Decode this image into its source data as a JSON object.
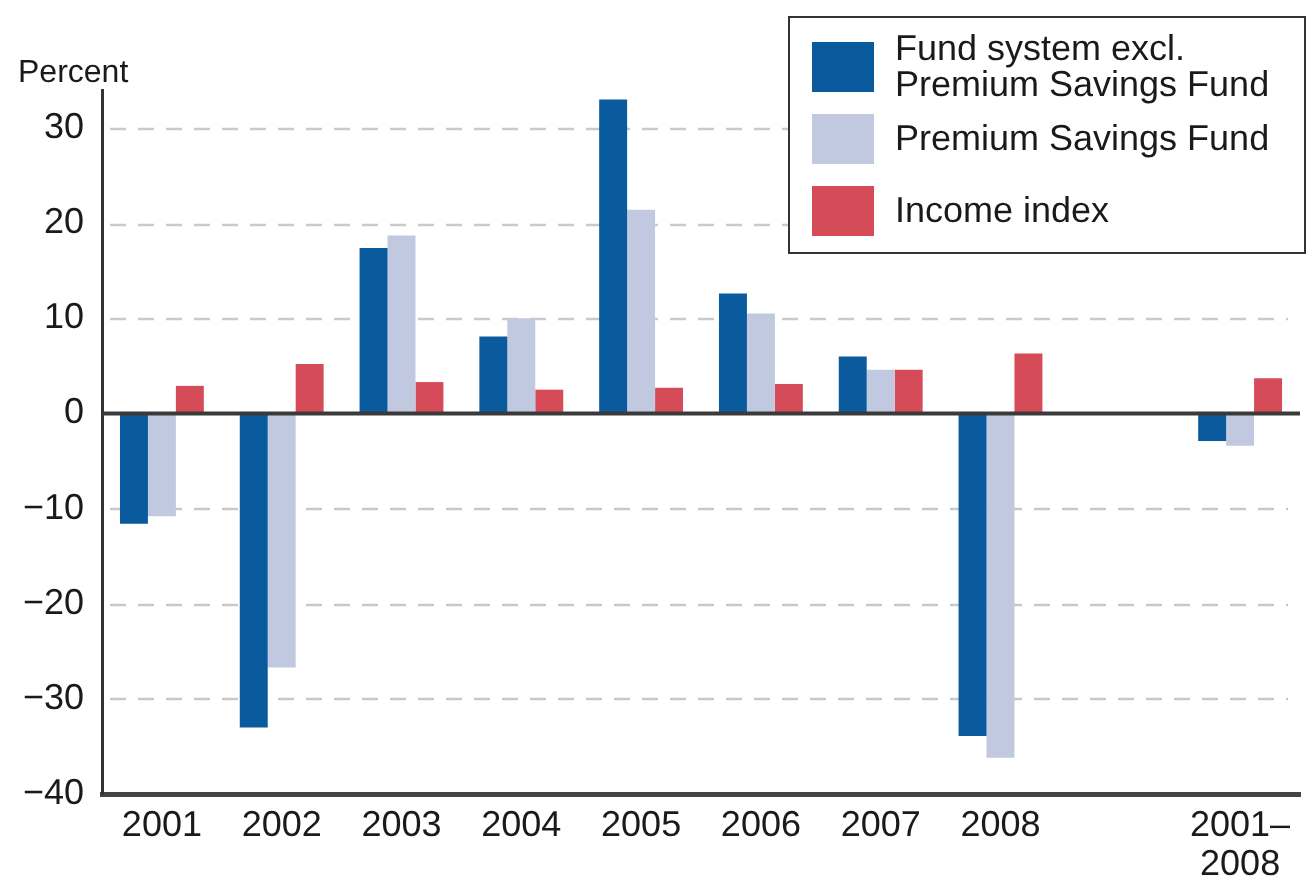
{
  "chart_data": {
    "type": "bar",
    "ylabel": "Percent",
    "categories": [
      "2001",
      "2002",
      "2003",
      "2004",
      "2005",
      "2006",
      "2007",
      "2008",
      null,
      "2001–2008"
    ],
    "series": [
      {
        "name": "Fund system excl. Premium Savings Fund",
        "color": "#0a5a9e",
        "values": [
          -11.6,
          -33.0,
          17.4,
          8.1,
          33.0,
          12.6,
          6.0,
          -33.9,
          null,
          -2.9
        ]
      },
      {
        "name": "Premium Savings Fund",
        "color": "#c1c9e1",
        "values": [
          -10.8,
          -26.7,
          18.7,
          10.0,
          21.4,
          10.5,
          4.6,
          -36.2,
          null,
          -3.4
        ]
      },
      {
        "name": "Income index",
        "color": "#d54b57",
        "values": [
          2.9,
          5.2,
          3.3,
          2.5,
          2.7,
          3.1,
          4.6,
          6.3,
          null,
          3.7
        ]
      }
    ],
    "ylim": [
      -40,
      34
    ],
    "yticks": [
      {
        "value": -40,
        "label": "−40"
      },
      {
        "value": -30,
        "label": "−30"
      },
      {
        "value": -20,
        "label": "−20"
      },
      {
        "value": -10,
        "label": "−10"
      },
      0,
      10,
      20,
      30
    ],
    "grid": "y",
    "legend": "top right"
  }
}
